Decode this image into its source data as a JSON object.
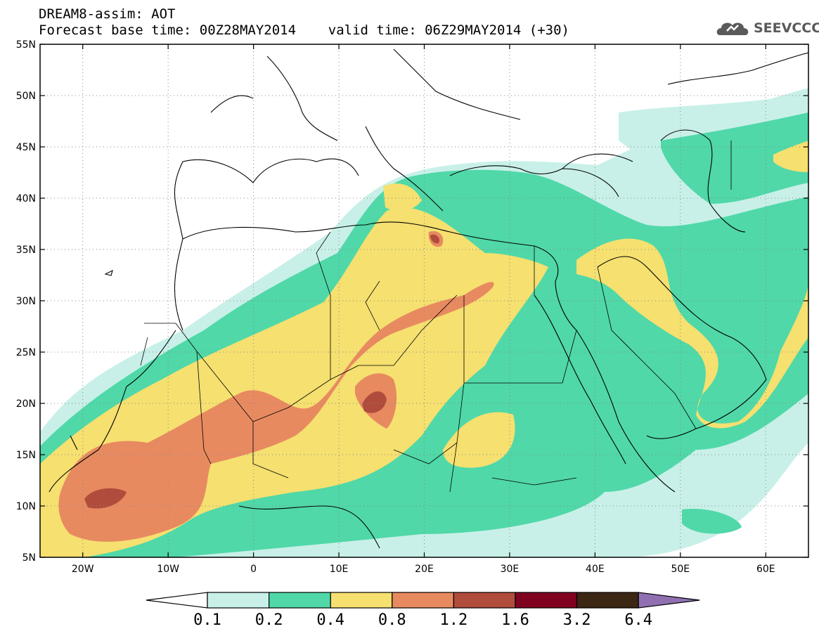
{
  "header": {
    "line1": "DREAM8-assim: AOT",
    "line2": "Forecast base time: 00Z28MAY2014    valid time: 06Z29MAY2014 (+30)",
    "logo_text": "SEEVCCC",
    "logo_icon": "cloud-icon"
  },
  "map": {
    "lon_range": [
      -25,
      65
    ],
    "lat_range": [
      5,
      55
    ],
    "lon_ticks": [
      {
        "value": -20,
        "label": "20W"
      },
      {
        "value": -10,
        "label": "10W"
      },
      {
        "value": 0,
        "label": "0"
      },
      {
        "value": 10,
        "label": "10E"
      },
      {
        "value": 20,
        "label": "20E"
      },
      {
        "value": 30,
        "label": "30E"
      },
      {
        "value": 40,
        "label": "40E"
      },
      {
        "value": 50,
        "label": "50E"
      },
      {
        "value": 60,
        "label": "60E"
      }
    ],
    "lat_ticks": [
      {
        "value": 5,
        "label": "5N"
      },
      {
        "value": 10,
        "label": "10N"
      },
      {
        "value": 15,
        "label": "15N"
      },
      {
        "value": 20,
        "label": "20N"
      },
      {
        "value": 25,
        "label": "25N"
      },
      {
        "value": 30,
        "label": "30N"
      },
      {
        "value": 35,
        "label": "35N"
      },
      {
        "value": 40,
        "label": "40N"
      },
      {
        "value": 45,
        "label": "45N"
      },
      {
        "value": 50,
        "label": "50N"
      },
      {
        "value": 55,
        "label": "55N"
      }
    ],
    "gridlines": "dotted"
  },
  "colorbar": {
    "boundaries": [
      "0.1",
      "0.2",
      "0.4",
      "0.8",
      "1.2",
      "1.6",
      "3.2",
      "6.4"
    ],
    "under_color": "#ffffff",
    "colors": [
      "#c8f0e8",
      "#50d8a8",
      "#f5e070",
      "#e88a60",
      "#b04c3c",
      "#800020",
      "#3c2614"
    ],
    "over_color": "#9070b0"
  }
}
